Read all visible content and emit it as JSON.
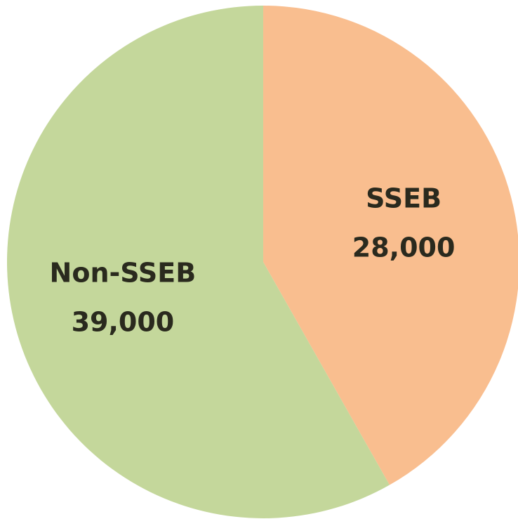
{
  "chart_data": {
    "type": "pie",
    "categories": [
      "SSEB",
      "Non-SSEB"
    ],
    "values": [
      28000,
      39000
    ],
    "value_labels": [
      "28,000",
      "39,000"
    ],
    "colors": [
      "#f9be8f",
      "#c4d79b"
    ]
  }
}
